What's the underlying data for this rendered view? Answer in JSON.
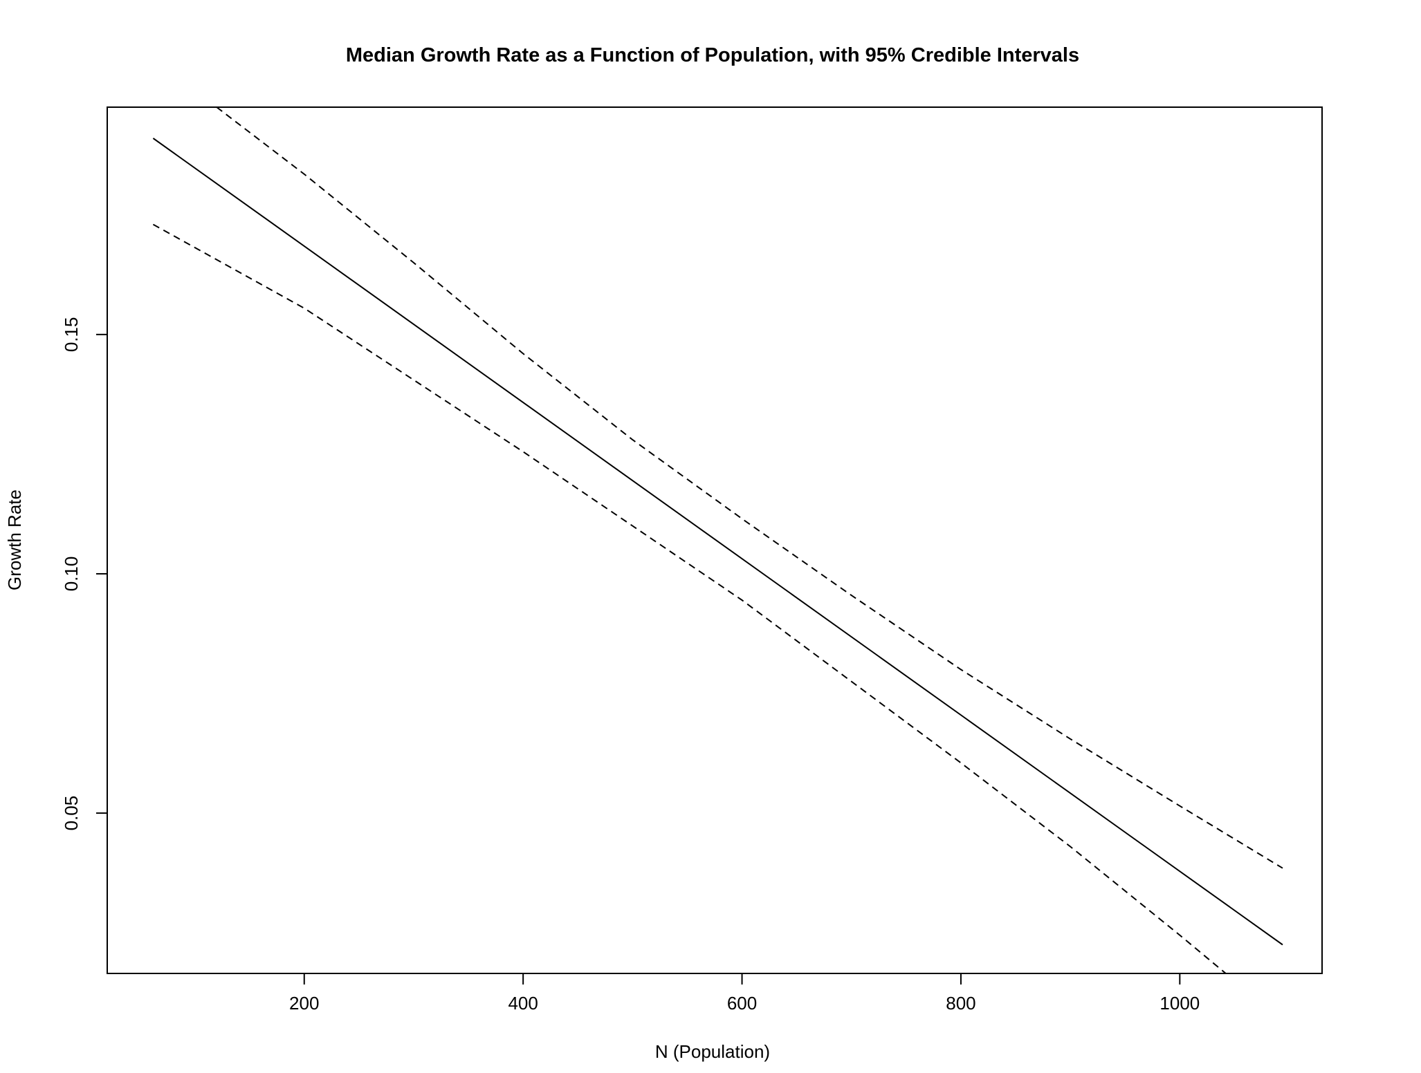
{
  "chart_data": {
    "type": "line",
    "title": "Median Growth Rate as a Function of Population, with 95% Credible Intervals",
    "xlabel": "N (Population)",
    "ylabel": "Growth Rate",
    "xlim": [
      20,
      1130
    ],
    "ylim": [
      0.0165,
      0.1975
    ],
    "xticks": [
      200,
      400,
      600,
      800,
      1000
    ],
    "xtick_labels": [
      "200",
      "400",
      "600",
      "800",
      "1000"
    ],
    "yticks": [
      0.05,
      0.1,
      0.15
    ],
    "ytick_labels": [
      "0.05",
      "0.10",
      "0.15"
    ],
    "grid": false,
    "series": [
      {
        "role": "median",
        "line_style": "solid",
        "color": "#000000",
        "x": [
          62,
          1094
        ],
        "y": [
          0.191,
          0.0225
        ]
      },
      {
        "role": "upper-95",
        "line_style": "dashed",
        "color": "#000000",
        "x": [
          120,
          200,
          300,
          400,
          500,
          600,
          700,
          800,
          900,
          1000,
          1094
        ],
        "y": [
          0.1975,
          0.1835,
          0.165,
          0.146,
          0.128,
          0.1115,
          0.0955,
          0.08,
          0.0655,
          0.0515,
          0.0385
        ]
      },
      {
        "role": "lower-95",
        "line_style": "dashed",
        "color": "#000000",
        "x": [
          62,
          200,
          300,
          400,
          500,
          600,
          700,
          800,
          900,
          1000,
          1042
        ],
        "y": [
          0.173,
          0.1555,
          0.1405,
          0.1255,
          0.11,
          0.0945,
          0.0775,
          0.0605,
          0.043,
          0.0245,
          0.0165
        ]
      }
    ]
  }
}
